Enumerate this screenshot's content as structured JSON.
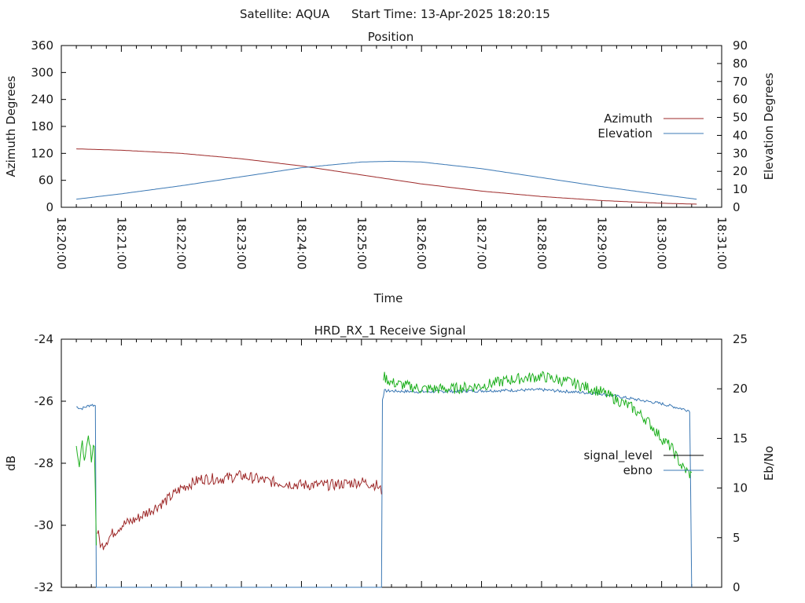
{
  "header": {
    "satellite_label": "Satellite: AQUA",
    "start_time_label": "Start Time: 13-Apr-2025 18:20:15"
  },
  "chart_data": [
    {
      "type": "line",
      "title": "Position",
      "xlabel": "Time",
      "ylabel": "Azimuth Degrees",
      "y2label": "Elevation Degrees",
      "x_ticks": [
        "18:20:00",
        "18:21:00",
        "18:22:00",
        "18:23:00",
        "18:24:00",
        "18:25:00",
        "18:26:00",
        "18:27:00",
        "18:28:00",
        "18:29:00",
        "18:30:00",
        "18:31:00"
      ],
      "xlim": [
        "18:20:00",
        "18:31:00"
      ],
      "ylim": [
        0,
        360
      ],
      "y_ticks": [
        "0",
        "60",
        "120",
        "180",
        "240",
        "300",
        "360"
      ],
      "y2lim": [
        0,
        90
      ],
      "y2_ticks": [
        "0",
        "10",
        "20",
        "30",
        "40",
        "50",
        "60",
        "70",
        "80",
        "90"
      ],
      "legend_position": "right",
      "series": [
        {
          "name": "Azimuth",
          "axis": "left",
          "color": "#9e2a2a",
          "x": [
            "18:20:15",
            "18:21:00",
            "18:22:00",
            "18:23:00",
            "18:24:00",
            "18:25:00",
            "18:26:00",
            "18:27:00",
            "18:28:00",
            "18:29:00",
            "18:30:00",
            "18:30:35"
          ],
          "y": [
            130,
            127,
            120,
            108,
            92,
            72,
            52,
            36,
            24,
            15,
            9,
            7
          ]
        },
        {
          "name": "Elevation",
          "axis": "right",
          "color": "#3b78b4",
          "x": [
            "18:20:15",
            "18:21:00",
            "18:22:00",
            "18:23:00",
            "18:24:00",
            "18:25:00",
            "18:25:30",
            "18:26:00",
            "18:27:00",
            "18:28:00",
            "18:29:00",
            "18:30:00",
            "18:30:35"
          ],
          "y": [
            4.5,
            7.5,
            12,
            17,
            22,
            25.2,
            25.6,
            25.2,
            21.5,
            16.5,
            11.5,
            7,
            4.5
          ]
        }
      ]
    },
    {
      "type": "line",
      "title": "HRD_RX_1 Receive Signal",
      "ylabel": "dB",
      "y2label": "Eb/No",
      "xlim": [
        "18:20:00",
        "18:31:00"
      ],
      "ylim": [
        -32,
        -24
      ],
      "y_ticks": [
        "-32",
        "-30",
        "-28",
        "-26",
        "-24"
      ],
      "y2lim": [
        0,
        25
      ],
      "y2_ticks": [
        "0",
        "5",
        "10",
        "15",
        "20",
        "25"
      ],
      "legend_position": "right",
      "legend_colors": [
        "#000000",
        "#3b78b4"
      ],
      "series": [
        {
          "name": "signal_level",
          "axis": "left",
          "colors_by_segment": [
            "#1fb01f",
            "#9e2a2a",
            "#1fb01f"
          ],
          "segments": [
            {
              "color": "#1fb01f",
              "x": [
                "18:20:15",
                "18:20:18",
                "18:20:21",
                "18:20:24",
                "18:20:27",
                "18:20:30",
                "18:20:33",
                "18:20:35"
              ],
              "y": [
                -27.3,
                -28.1,
                -27.4,
                -27.9,
                -27.2,
                -27.8,
                -27.3,
                -30.6
              ]
            },
            {
              "color": "#9e2a2a",
              "x": [
                "18:20:36",
                "18:20:40",
                "18:20:50",
                "18:21:00",
                "18:21:15",
                "18:21:30",
                "18:21:45",
                "18:22:00",
                "18:22:20",
                "18:22:40",
                "18:23:00",
                "18:23:30",
                "18:24:00",
                "18:24:30",
                "18:25:00",
                "18:25:15",
                "18:25:20"
              ],
              "y": [
                -30.2,
                -30.7,
                -30.3,
                -30.0,
                -29.8,
                -29.5,
                -29.2,
                -28.8,
                -28.5,
                -28.5,
                -28.4,
                -28.6,
                -28.7,
                -28.7,
                -28.6,
                -28.7,
                -28.9
              ]
            },
            {
              "color": "#1fb01f",
              "x": [
                "18:25:22",
                "18:25:30",
                "18:26:00",
                "18:26:30",
                "18:27:00",
                "18:27:30",
                "18:28:00",
                "18:28:30",
                "18:29:00",
                "18:29:30",
                "18:29:45",
                "18:30:00",
                "18:30:10",
                "18:30:20",
                "18:30:30"
              ],
              "y": [
                -25.2,
                -25.4,
                -25.6,
                -25.6,
                -25.5,
                -25.3,
                -25.2,
                -25.4,
                -25.7,
                -26.2,
                -26.6,
                -27.2,
                -27.5,
                -28.1,
                -28.4
              ]
            }
          ],
          "noise_amplitude_db": 0.18
        },
        {
          "name": "ebno",
          "axis": "right",
          "color": "#3b78b4",
          "x": [
            "18:20:15",
            "18:20:20",
            "18:20:30",
            "18:20:34",
            "18:20:35",
            "18:25:20",
            "18:25:21",
            "18:25:23",
            "18:26:00",
            "18:27:00",
            "18:28:00",
            "18:29:00",
            "18:30:00",
            "18:30:28",
            "18:30:29",
            "18:30:30"
          ],
          "y": [
            18.2,
            18.0,
            18.4,
            18.3,
            0,
            0,
            19.0,
            19.8,
            19.7,
            19.8,
            19.9,
            19.5,
            18.5,
            17.8,
            10,
            0
          ],
          "noise_amplitude": 0.15
        }
      ]
    }
  ]
}
